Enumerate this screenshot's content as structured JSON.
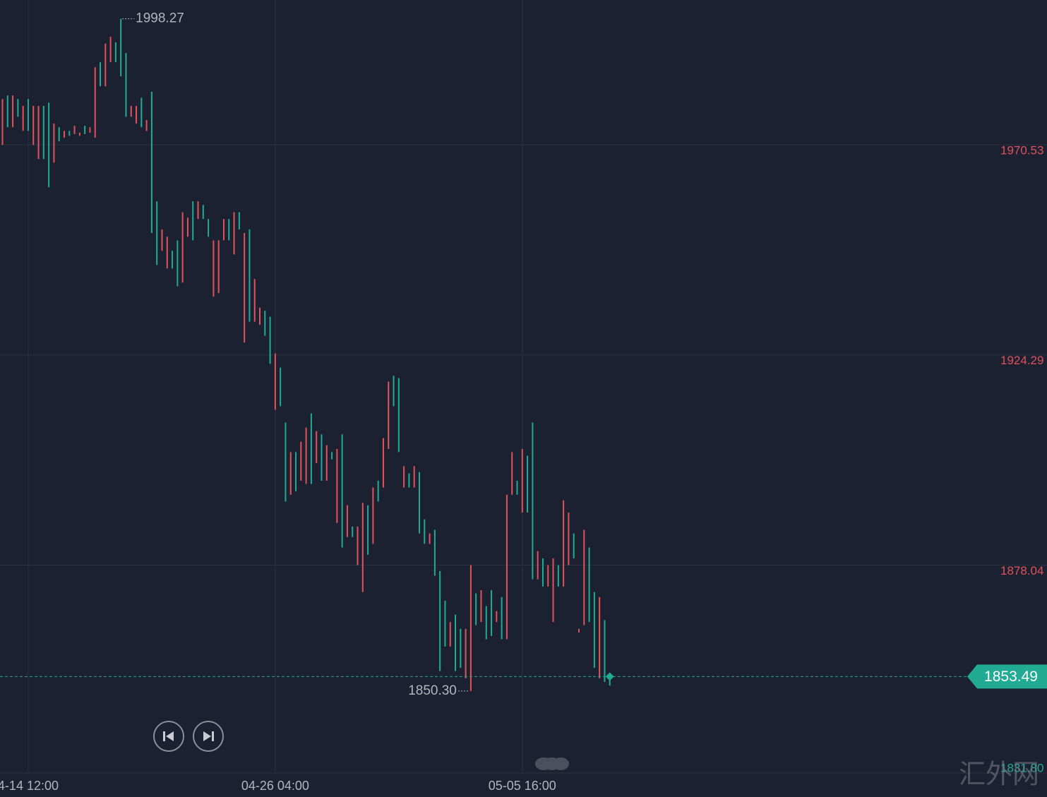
{
  "chart_data": {
    "type": "candlestick",
    "categories": [
      null,
      null,
      null,
      null,
      null,
      "4-14 12:00",
      null,
      null,
      null,
      null,
      null,
      null,
      null,
      null,
      null,
      null,
      null,
      null,
      null,
      null,
      null,
      null,
      null,
      null,
      null,
      null,
      null,
      null,
      null,
      null,
      null,
      null,
      null,
      null,
      null,
      null,
      null,
      null,
      null,
      null,
      null,
      null,
      null,
      null,
      null,
      null,
      null,
      null,
      null,
      null,
      null,
      null,
      null,
      "04-26 04:00",
      null,
      null,
      null,
      null,
      null,
      null,
      null,
      null,
      null,
      null,
      null,
      null,
      null,
      null,
      null,
      null,
      null,
      null,
      null,
      null,
      null,
      null,
      null,
      null,
      null,
      null,
      null,
      null,
      null,
      null,
      null,
      null,
      null,
      null,
      null,
      null,
      null,
      null,
      null,
      null,
      null,
      null,
      null,
      null,
      null,
      null,
      null,
      "05-05 16:00",
      null,
      null,
      null,
      null,
      null,
      null,
      null,
      null,
      null,
      null,
      null,
      null,
      null,
      null,
      null,
      null,
      null
    ],
    "open": [
      1980.6,
      1974.4,
      1981.4,
      1976.7,
      1979.1,
      1973.6,
      1979.1,
      1979.1,
      1967.4,
      1961.2,
      1975.2,
      1971.3,
      1973.6,
      1972.5,
      1974.7,
      1973.2,
      1972.9,
      1974.4,
      1987.6,
      1983.4,
      1992.8,
      1994.3,
      1988.7,
      1985.6,
      1976.7,
      1979.1,
      1979.1,
      1974.4,
      1976.0,
      1951.1,
      1944.1,
      1951.9,
      1950.3,
      1943.3,
      1939.4,
      1955.7,
      1954.5,
      1949.5,
      1958.1,
      1954.2,
      1950.3,
      1949.5,
      1949.5,
      1954.2,
      1949.5,
      1955.7,
      1951.9,
      1951.1,
      1931.6,
      1941.0,
      1934.7,
      1928.5,
      1922.3,
      1924.6,
      1913.0,
      1892.0,
      1902.9,
      1894.3,
      1905.2,
      1908.3,
      1895.9,
      1907.5,
      1896.6,
      1904.4,
      1901.3,
      1903.6,
      1881.9,
      1891.2,
      1884.2,
      1886.5,
      1891.7,
      1880.3,
      1895.1,
      1892.0,
      1906.0,
      1918.4,
      1913.0,
      1902.9,
      1899.8,
      1895.1,
      1899.8,
      1885.0,
      1882.7,
      1885.0,
      1875.7,
      1854.7,
      1860.1,
      1865.5,
      1854.7,
      1855.4,
      1864.0,
      1878.0,
      1864.8,
      1872.5,
      1861.7,
      1862.4,
      1867.9,
      1861.7,
      1893.5,
      1902.9,
      1893.5,
      1903.6,
      1889.6,
      1874.9,
      1881.1,
      1873.3,
      1878.0,
      1879.5,
      1873.3,
      1892.3,
      1889.6,
      1879.5,
      1864.0,
      1885.8,
      1865.5,
      1855.4,
      1871.0,
      1852.3,
      1851.5
    ],
    "close": [
      1970.5,
      1981.4,
      1974.4,
      1980.6,
      1973.6,
      1980.6,
      1970.5,
      1967.4,
      1979.1,
      1979.8,
      1966.6,
      1974.4,
      1972.1,
      1973.6,
      1972.9,
      1972.5,
      1974.7,
      1973.2,
      1972.1,
      1988.7,
      1983.4,
      1988.7,
      1993.1,
      1998.27,
      1990.7,
      1976.7,
      1975.2,
      1980.9,
      1973.6,
      1982.2,
      1958.1,
      1947.2,
      1943.3,
      1947.2,
      1949.5,
      1940.2,
      1950.3,
      1958.1,
      1954.2,
      1957.3,
      1954.2,
      1937.1,
      1937.9,
      1949.5,
      1954.2,
      1946.4,
      1955.7,
      1927.0,
      1951.9,
      1931.6,
      1930.9,
      1934.0,
      1932.7,
      1912.2,
      1921.5,
      1909.4,
      1893.5,
      1902.9,
      1896.6,
      1895.9,
      1911.4,
      1900.5,
      1906.8,
      1896.6,
      1902.9,
      1887.3,
      1906.8,
      1884.2,
      1886.5,
      1878.0,
      1872.1,
      1891.2,
      1882.7,
      1896.6,
      1895.1,
      1903.6,
      1919.7,
      1919.2,
      1895.1,
      1898.2,
      1895.1,
      1898.5,
      1888.1,
      1882.7,
      1885.8,
      1876.7,
      1870.2,
      1860.1,
      1867.1,
      1864.0,
      1853.1,
      1850.3,
      1871.8,
      1865.5,
      1869.0,
      1872.5,
      1865.5,
      1871.0,
      1861.7,
      1893.5,
      1896.6,
      1889.6,
      1902.1,
      1909.4,
      1874.9,
      1879.5,
      1873.3,
      1865.5,
      1878.0,
      1873.3,
      1878.0,
      1885.0,
      1863.2,
      1864.8,
      1881.9,
      1872.1,
      1853.1,
      1865.9,
      1853.49
    ],
    "up_color": "#22ab94",
    "down_color": "#e0525c",
    "ylim": [
      1831.8,
      2002.4
    ],
    "yticks": [
      1970.53,
      1924.29,
      1878.04,
      {
        "value": 1831.8,
        "label": "1831.80"
      }
    ],
    "grid": true,
    "max_label": 1998.27,
    "min_label": {
      "value": 1850.3,
      "label": "1850.30"
    },
    "last_price": 1853.49,
    "watermark": "汇外网"
  }
}
